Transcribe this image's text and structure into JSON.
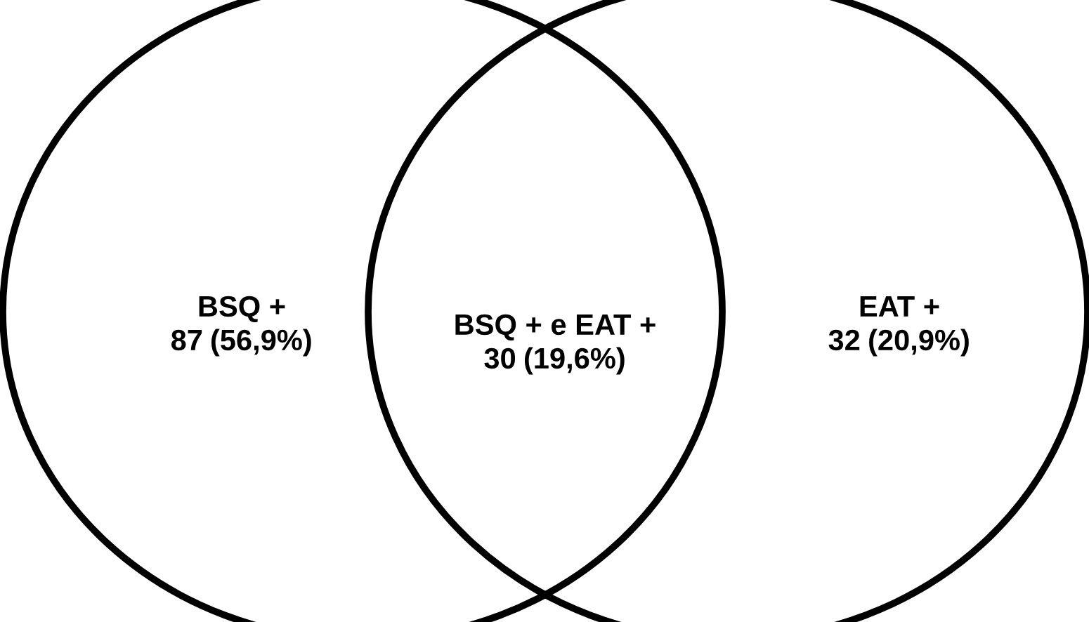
{
  "chart_data": {
    "type": "other",
    "categories": [
      "BSQ +",
      "BSQ + e EAT +",
      "EAT +"
    ],
    "values": [
      87,
      30,
      32
    ],
    "data_labels": true,
    "annotations": [
      "(56,9%)",
      "(19,6%)",
      "(20,9%)"
    ],
    "colors": [
      "#000000",
      "#000000",
      "#000000"
    ]
  }
}
